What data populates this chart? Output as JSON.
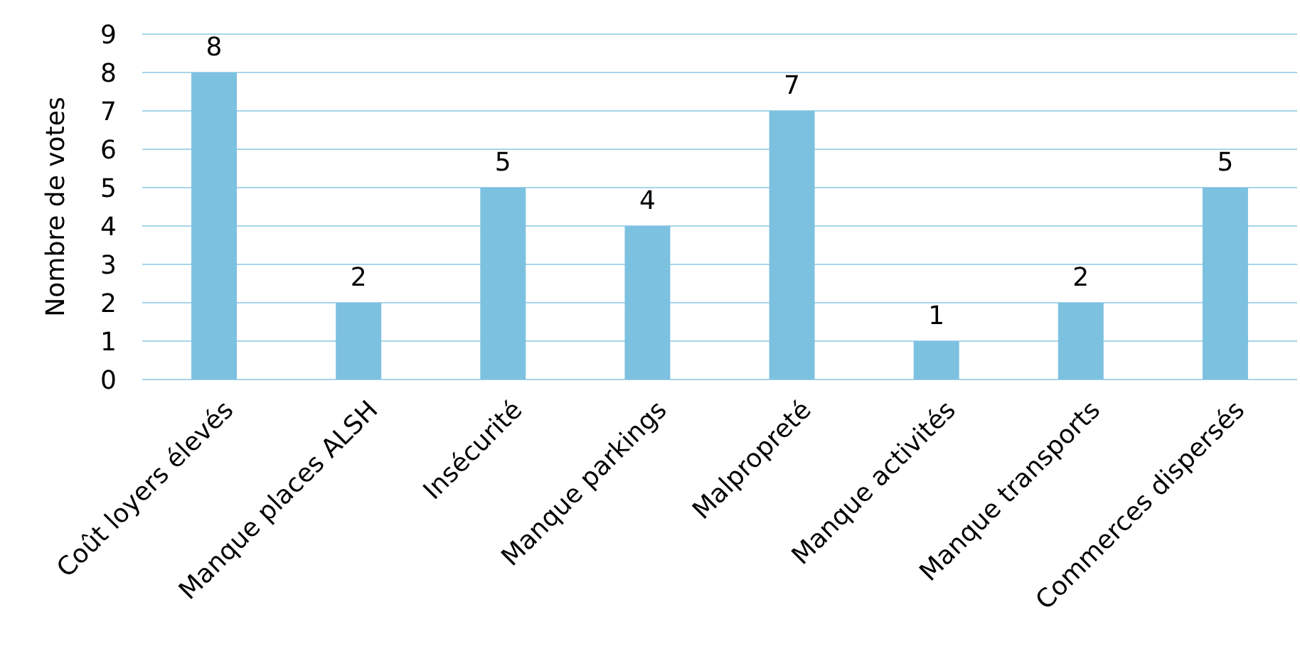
{
  "chart_data": {
    "type": "bar",
    "ylabel": "Nombre de votes",
    "categories": [
      "Coût loyers élevés",
      "Manque places ALSH",
      "Insécurité",
      "Manque parkings",
      "Malpropreté",
      "Manque activités",
      "Manque transports",
      "Commerces dispersés"
    ],
    "values": [
      8,
      2,
      5,
      4,
      7,
      1,
      2,
      5
    ],
    "color": "#7dc1e0",
    "ylim": [
      0,
      9
    ],
    "yticks": [
      0,
      1,
      2,
      3,
      4,
      5,
      6,
      7,
      8,
      9
    ],
    "grid": "y",
    "data_labels": true
  }
}
